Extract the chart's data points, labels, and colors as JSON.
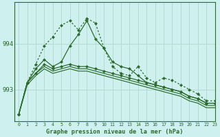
{
  "title": "Graphe pression niveau de la mer (hPa)",
  "bg_color": "#cef0ee",
  "grid_color": "#b0d8cc",
  "line_color": "#2d6b2d",
  "xlim": [
    -0.5,
    23
  ],
  "ylim": [
    992.3,
    994.9
  ],
  "yticks": [
    993,
    994
  ],
  "xticks": [
    0,
    1,
    2,
    3,
    4,
    5,
    6,
    7,
    8,
    9,
    10,
    11,
    12,
    13,
    14,
    15,
    16,
    17,
    18,
    19,
    20,
    21,
    22,
    23
  ],
  "line_spiky": [
    992.45,
    993.15,
    993.55,
    993.95,
    994.15,
    994.4,
    994.5,
    994.3,
    994.55,
    994.45,
    993.9,
    993.5,
    993.35,
    993.3,
    993.5,
    993.25,
    993.15,
    993.25,
    993.2,
    993.1,
    993.0,
    992.9,
    992.75,
    992.75
  ],
  "line_smooth_peak": [
    992.45,
    993.15,
    993.45,
    993.65,
    993.5,
    993.6,
    993.95,
    994.2,
    994.5,
    994.1,
    993.9,
    993.6,
    993.5,
    993.45,
    993.3,
    993.15,
    993.1,
    993.05,
    993.0,
    992.95,
    992.85,
    992.8,
    992.7,
    992.7
  ],
  "line_flat1": [
    992.45,
    993.15,
    993.35,
    993.55,
    993.45,
    993.5,
    993.55,
    993.5,
    993.5,
    993.45,
    993.4,
    993.35,
    993.3,
    993.25,
    993.2,
    993.15,
    993.1,
    993.05,
    993.0,
    992.95,
    992.85,
    992.8,
    992.7,
    992.7
  ],
  "line_flat2_nomark": [
    992.45,
    993.15,
    993.35,
    993.5,
    993.4,
    993.45,
    993.5,
    993.45,
    993.45,
    993.4,
    993.35,
    993.3,
    993.25,
    993.2,
    993.15,
    993.1,
    993.05,
    993.0,
    992.95,
    992.9,
    992.8,
    992.75,
    992.65,
    992.65
  ],
  "line_flat3_nomark": [
    992.45,
    993.1,
    993.3,
    993.45,
    993.35,
    993.4,
    993.45,
    993.4,
    993.4,
    993.35,
    993.3,
    993.25,
    993.2,
    993.15,
    993.1,
    993.05,
    993.0,
    992.95,
    992.9,
    992.85,
    992.75,
    992.7,
    992.6,
    992.6
  ]
}
